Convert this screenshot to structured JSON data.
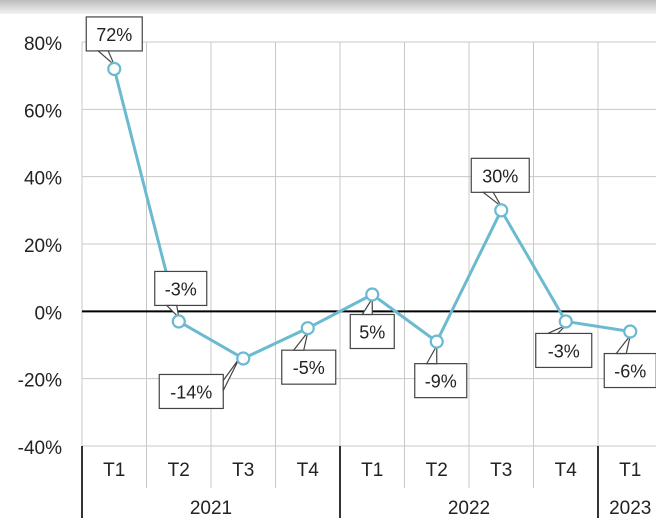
{
  "chart_data": {
    "type": "line",
    "title": "",
    "xlabel": "",
    "ylabel": "",
    "ylim": [
      -40,
      80
    ],
    "y_ticks": [
      "80%",
      "60%",
      "40%",
      "20%",
      "0%",
      "-20%",
      "-40%"
    ],
    "y_tick_values": [
      80,
      60,
      40,
      20,
      0,
      -20,
      -40
    ],
    "categories": [
      "T1",
      "T2",
      "T3",
      "T4",
      "T1",
      "T2",
      "T3",
      "T4",
      "T1"
    ],
    "groups": [
      {
        "label": "2021",
        "count": 4
      },
      {
        "label": "2022",
        "count": 4
      },
      {
        "label": "2023",
        "count": 1
      }
    ],
    "series": [
      {
        "values": [
          72,
          -3,
          -14,
          -5,
          5,
          -9,
          30,
          -3,
          -6
        ],
        "labels": [
          "72%",
          "-3%",
          "-14%",
          "-5%",
          "5%",
          "-9%",
          "30%",
          "-3%",
          "-6%"
        ]
      }
    ],
    "grid": true,
    "colors": {
      "line": "#6bbad0",
      "grid": "#c8c8c8",
      "zero_line": "#000000"
    }
  }
}
